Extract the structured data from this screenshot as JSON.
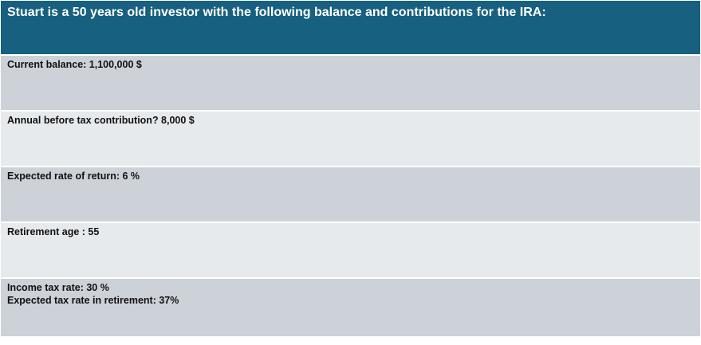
{
  "header": {
    "title": "Stuart is a 50 years old investor with the following balance and contributions for the IRA:"
  },
  "rows": [
    {
      "lines": [
        "Current balance: 1,100,000 $"
      ]
    },
    {
      "lines": [
        "Annual before tax contribution? 8,000 $"
      ]
    },
    {
      "lines": [
        "Expected rate of return: 6 %"
      ]
    },
    {
      "lines": [
        "Retirement age : 55"
      ]
    },
    {
      "lines": [
        "Income tax rate: 30 %",
        "Expected tax rate in retirement: 37%"
      ]
    }
  ],
  "colors": {
    "header_bg": "#17607f",
    "row_dark": "#cdd1d8",
    "row_light": "#e7eaed"
  }
}
